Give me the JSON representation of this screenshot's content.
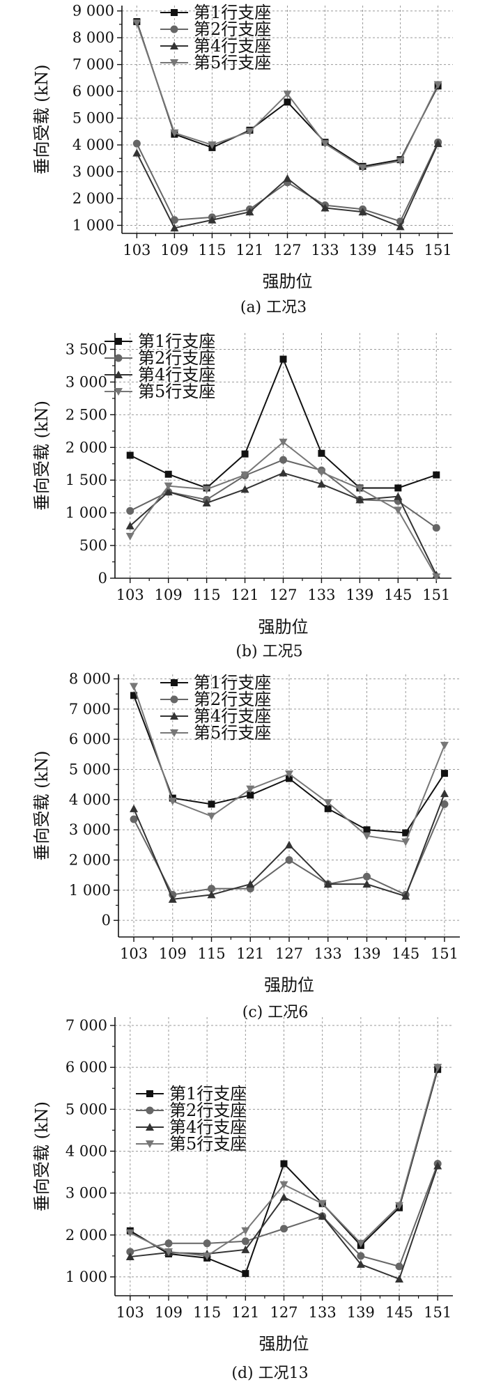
{
  "chart_data": [
    {
      "type": "line",
      "title": "",
      "caption": "(a) 工况3",
      "xlabel": "强肋位",
      "ylabel": "垂向受载 (kN)",
      "categories": [
        "103",
        "109",
        "115",
        "121",
        "127",
        "133",
        "139",
        "145",
        "151"
      ],
      "ylim": [
        700,
        9200
      ],
      "yticks": [
        1000,
        2000,
        3000,
        4000,
        5000,
        6000,
        7000,
        8000,
        9000
      ],
      "ytick_labels": [
        "1 000",
        "2 000",
        "3 000",
        "4 000",
        "5 000",
        "6 000",
        "7 000",
        "8 000",
        "9 000"
      ],
      "grid": true,
      "legend_position": "top-left",
      "series": [
        {
          "name": "第1行支座",
          "marker": "square",
          "color": "#111111",
          "values": [
            8600,
            4400,
            3900,
            4550,
            5600,
            4100,
            3200,
            3450,
            6200
          ]
        },
        {
          "name": "第2行支座",
          "marker": "circle",
          "color": "#666666",
          "values": [
            4050,
            1200,
            1300,
            1600,
            2600,
            1750,
            1600,
            1150,
            4100
          ]
        },
        {
          "name": "第4行支座",
          "marker": "triangle-up",
          "color": "#333333",
          "values": [
            3700,
            900,
            1200,
            1500,
            2750,
            1650,
            1500,
            950,
            4050
          ]
        },
        {
          "name": "第5行支座",
          "marker": "triangle-down",
          "color": "#777777",
          "values": [
            8550,
            4450,
            4000,
            4500,
            5900,
            4050,
            3150,
            3400,
            6250
          ]
        }
      ]
    },
    {
      "type": "line",
      "title": "",
      "caption": "(b) 工况5",
      "xlabel": "强肋位",
      "ylabel": "垂向受载 (kN)",
      "categories": [
        "103",
        "109",
        "115",
        "121",
        "127",
        "133",
        "139",
        "145",
        "151"
      ],
      "ylim": [
        0,
        3750
      ],
      "yticks": [
        0,
        500,
        1000,
        1500,
        2000,
        2500,
        3000,
        3500
      ],
      "ytick_labels": [
        "0",
        "500",
        "1 000",
        "1 500",
        "2 000",
        "2 500",
        "3 000",
        "3 500"
      ],
      "grid": true,
      "legend_position": "top-left",
      "series": [
        {
          "name": "第1行支座",
          "marker": "square",
          "color": "#111111",
          "values": [
            1880,
            1590,
            1380,
            1900,
            3350,
            1910,
            1380,
            1380,
            1580
          ]
        },
        {
          "name": "第2行支座",
          "marker": "circle",
          "color": "#666666",
          "values": [
            1030,
            1320,
            1200,
            1570,
            1810,
            1650,
            1200,
            1180,
            770
          ]
        },
        {
          "name": "第4行支座",
          "marker": "triangle-up",
          "color": "#333333",
          "values": [
            800,
            1320,
            1150,
            1360,
            1610,
            1440,
            1200,
            1250,
            50
          ]
        },
        {
          "name": "第5行支座",
          "marker": "triangle-down",
          "color": "#777777",
          "values": [
            640,
            1410,
            1360,
            1580,
            2080,
            1620,
            1370,
            1040,
            20
          ]
        }
      ]
    },
    {
      "type": "line",
      "title": "",
      "caption": "(c) 工况6",
      "xlabel": "强肋位",
      "ylabel": "垂向受载 (kN)",
      "categories": [
        "103",
        "109",
        "115",
        "121",
        "127",
        "133",
        "139",
        "145",
        "151"
      ],
      "ylim": [
        -550,
        8150
      ],
      "yticks": [
        0,
        1000,
        2000,
        3000,
        4000,
        5000,
        6000,
        7000,
        8000
      ],
      "ytick_labels": [
        "0",
        "1 000",
        "2 000",
        "3 000",
        "4 000",
        "5 000",
        "6 000",
        "7 000",
        "8 000"
      ],
      "grid": true,
      "legend_position": "top-left",
      "series": [
        {
          "name": "第1行支座",
          "marker": "square",
          "color": "#111111",
          "values": [
            7450,
            4050,
            3850,
            4150,
            4700,
            3700,
            3000,
            2900,
            4870
          ]
        },
        {
          "name": "第2行支座",
          "marker": "circle",
          "color": "#666666",
          "values": [
            3350,
            850,
            1050,
            1050,
            2000,
            1200,
            1450,
            850,
            3850
          ]
        },
        {
          "name": "第4行支座",
          "marker": "triangle-up",
          "color": "#333333",
          "values": [
            3700,
            700,
            850,
            1200,
            2500,
            1200,
            1200,
            800,
            4200
          ]
        },
        {
          "name": "第5行支座",
          "marker": "triangle-down",
          "color": "#777777",
          "values": [
            7750,
            3950,
            3450,
            4350,
            4850,
            3900,
            2800,
            2600,
            5800
          ]
        }
      ]
    },
    {
      "type": "line",
      "title": "",
      "caption": "(d) 工况13",
      "xlabel": "强肋位",
      "ylabel": "垂向受载 (kN)",
      "categories": [
        "103",
        "109",
        "115",
        "121",
        "127",
        "133",
        "139",
        "145",
        "151"
      ],
      "ylim": [
        550,
        7200
      ],
      "yticks": [
        1000,
        2000,
        3000,
        4000,
        5000,
        6000,
        7000
      ],
      "ytick_labels": [
        "1 000",
        "2 000",
        "3 000",
        "4 000",
        "5 000",
        "6 000",
        "7 000"
      ],
      "grid": true,
      "legend_position": "top-left",
      "series": [
        {
          "name": "第1行支座",
          "marker": "square",
          "color": "#111111",
          "values": [
            2100,
            1550,
            1450,
            1080,
            3700,
            2750,
            1750,
            2650,
            5950
          ]
        },
        {
          "name": "第2行支座",
          "marker": "circle",
          "color": "#666666",
          "values": [
            1600,
            1800,
            1800,
            1850,
            2150,
            2450,
            1500,
            1250,
            3700
          ]
        },
        {
          "name": "第4行支座",
          "marker": "triangle-up",
          "color": "#333333",
          "values": [
            1480,
            1580,
            1550,
            1650,
            2900,
            2450,
            1300,
            950,
            3650
          ]
        },
        {
          "name": "第5行支座",
          "marker": "triangle-down",
          "color": "#777777",
          "values": [
            2050,
            1600,
            1500,
            2100,
            3200,
            2750,
            1800,
            2700,
            6000
          ]
        }
      ]
    }
  ]
}
